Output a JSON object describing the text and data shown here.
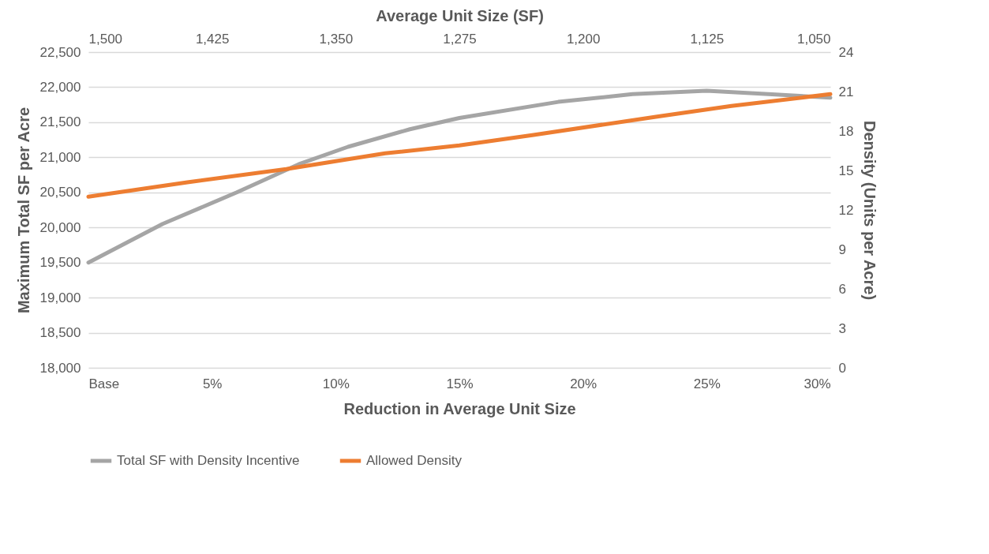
{
  "chart_data": {
    "type": "line",
    "xlabel": "Reduction in Average Unit Size",
    "ylabel": "Maximum Total SF per Acre",
    "y2label": "Density (Units per Acre)",
    "x2label": "Average Unit Size (SF)",
    "xlim": [
      0,
      30
    ],
    "xticks": [
      {
        "value": 0,
        "label": "Base"
      },
      {
        "value": 5,
        "label": "5%"
      },
      {
        "value": 10,
        "label": "10%"
      },
      {
        "value": 15,
        "label": "15%"
      },
      {
        "value": 20,
        "label": "20%"
      },
      {
        "value": 25,
        "label": "25%"
      },
      {
        "value": 30,
        "label": "30%"
      }
    ],
    "x2lim": [
      1500,
      1050
    ],
    "x2ticks": [
      {
        "value": 1500,
        "label": "1,500"
      },
      {
        "value": 1425,
        "label": "1,425"
      },
      {
        "value": 1350,
        "label": "1,350"
      },
      {
        "value": 1275,
        "label": "1,275"
      },
      {
        "value": 1200,
        "label": "1,200"
      },
      {
        "value": 1125,
        "label": "1,125"
      },
      {
        "value": 1050,
        "label": "1,050"
      }
    ],
    "ylim": [
      18000,
      22500
    ],
    "yticks": [
      {
        "value": 18000,
        "label": "18,000"
      },
      {
        "value": 18500,
        "label": "18,500"
      },
      {
        "value": 19000,
        "label": "19,000"
      },
      {
        "value": 19500,
        "label": "19,500"
      },
      {
        "value": 20000,
        "label": "20,000"
      },
      {
        "value": 20500,
        "label": "20,500"
      },
      {
        "value": 21000,
        "label": "21,000"
      },
      {
        "value": 21500,
        "label": "21,500"
      },
      {
        "value": 22000,
        "label": "22,000"
      },
      {
        "value": 22500,
        "label": "22,500"
      }
    ],
    "y2lim": [
      0,
      24
    ],
    "y2ticks": [
      0,
      3,
      6,
      9,
      12,
      15,
      18,
      21,
      24
    ],
    "grid": "y",
    "legend": "bottom",
    "line_style": "solid",
    "series": [
      {
        "name": "Total SF with Density Incentive",
        "color": "#a5a5a5",
        "x": [
          0,
          3,
          6,
          8.5,
          10.5,
          13,
          15,
          19,
          22,
          25,
          27.5,
          30
        ],
        "values": [
          19500,
          20050,
          20500,
          20900,
          21150,
          21400,
          21560,
          21790,
          21900,
          21950,
          21900,
          21850
        ]
      },
      {
        "name": "Allowed Density",
        "color": "#ed7d31",
        "axis": "y2",
        "x": [
          0,
          4,
          8,
          12,
          15,
          18,
          23,
          26,
          30
        ],
        "values": [
          13.0,
          14.1,
          15.1,
          16.3,
          16.9,
          17.7,
          19.1,
          19.9,
          20.8
        ]
      }
    ]
  }
}
